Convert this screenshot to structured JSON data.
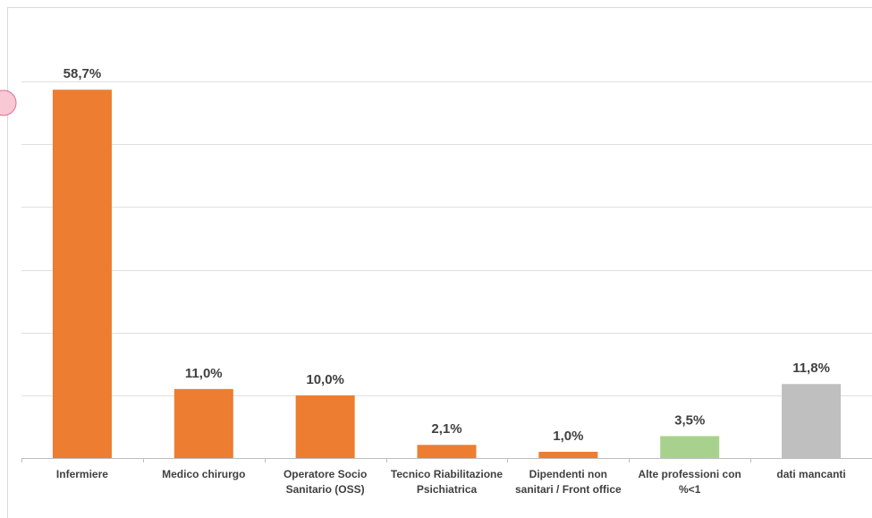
{
  "chart_data": {
    "type": "bar",
    "categories": [
      "Infermiere",
      "Medico chirurgo",
      "Operatore Socio Sanitario (OSS)",
      "Tecnico Riabilitazione Psichiatrica",
      "Dipendenti non sanitari / Front office",
      "Alte professioni con %<1",
      "dati mancanti"
    ],
    "values": [
      58.7,
      11.0,
      10.0,
      2.1,
      1.0,
      3.5,
      11.8
    ],
    "value_labels": [
      "58,7%",
      "11,0%",
      "10,0%",
      "2,1%",
      "1,0%",
      "3,5%",
      "11,8%"
    ],
    "colors": [
      "#ed7d31",
      "#ed7d31",
      "#ed7d31",
      "#ed7d31",
      "#ed7d31",
      "#a9d18e",
      "#bfbfbf"
    ],
    "ylim": [
      0,
      70
    ],
    "yticks": [
      0,
      10,
      20,
      30,
      40,
      50,
      60
    ],
    "grid": true
  }
}
